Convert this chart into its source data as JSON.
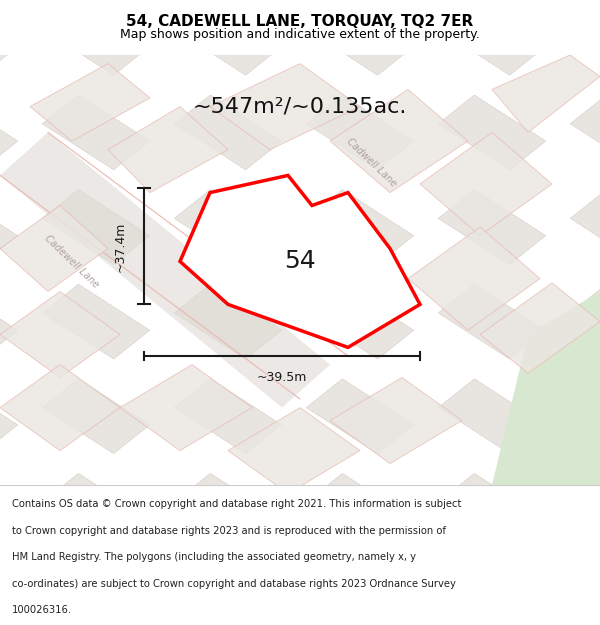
{
  "title": "54, CADEWELL LANE, TORQUAY, TQ2 7ER",
  "subtitle": "Map shows position and indicative extent of the property.",
  "area_text": "~547m²/~0.135ac.",
  "label_54": "54",
  "dim_height": "~37.4m",
  "dim_width": "~39.5m",
  "footer": "Contains OS data © Crown copyright and database right 2021. This information is subject to Crown copyright and database rights 2023 and is reproduced with the permission of HM Land Registry. The polygons (including the associated geometry, namely x, y co-ordinates) are subject to Crown copyright and database rights 2023 Ordnance Survey 100026316.",
  "bg_color": "#f5f5f5",
  "map_bg": "#f0eeec",
  "road_color": "#e8e0d8",
  "road_line_color": "#e8b8b0",
  "green_area_color": "#d8e8d0",
  "property_fill": "#ffffff",
  "property_edge": "#ff0000",
  "title_color": "#000000",
  "dim_line_color": "#1a1a1a",
  "footer_color": "#222222",
  "label_color": "#1a1a1a",
  "street_label_color": "#b0a0a0",
  "figsize": [
    6.0,
    6.25
  ],
  "dpi": 100
}
